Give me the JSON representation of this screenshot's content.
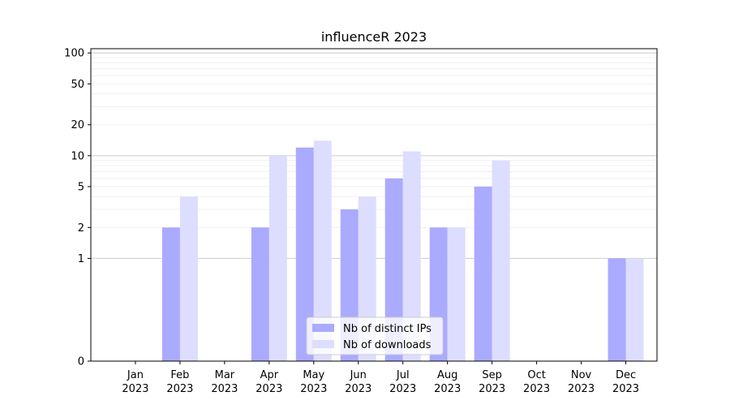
{
  "chart_data": {
    "type": "bar",
    "title": "influenceR 2023",
    "xlabel": "",
    "ylabel": "",
    "y_scale": "symlog",
    "y_ticks": [
      0,
      1,
      2,
      5,
      10,
      20,
      50,
      100
    ],
    "y_tick_labels": [
      "0",
      "1",
      "2",
      "5",
      "10",
      "20",
      "50",
      "100"
    ],
    "ylim": [
      0,
      110
    ],
    "grid": true,
    "legend_position": "bottom-center",
    "categories": [
      "Jan\n2023",
      "Feb\n2023",
      "Mar\n2023",
      "Apr\n2023",
      "May\n2023",
      "Jun\n2023",
      "Jul\n2023",
      "Aug\n2023",
      "Sep\n2023",
      "Oct\n2023",
      "Nov\n2023",
      "Dec\n2023"
    ],
    "series": [
      {
        "name": "Nb of distinct IPs",
        "color": "#aaaaff",
        "values": [
          0,
          2,
          0,
          2,
          12,
          3,
          6,
          2,
          5,
          0,
          0,
          1
        ]
      },
      {
        "name": "Nb of downloads",
        "color": "#ddddff",
        "values": [
          0,
          4,
          0,
          10,
          14,
          4,
          11,
          2,
          9,
          0,
          0,
          1
        ]
      }
    ]
  }
}
